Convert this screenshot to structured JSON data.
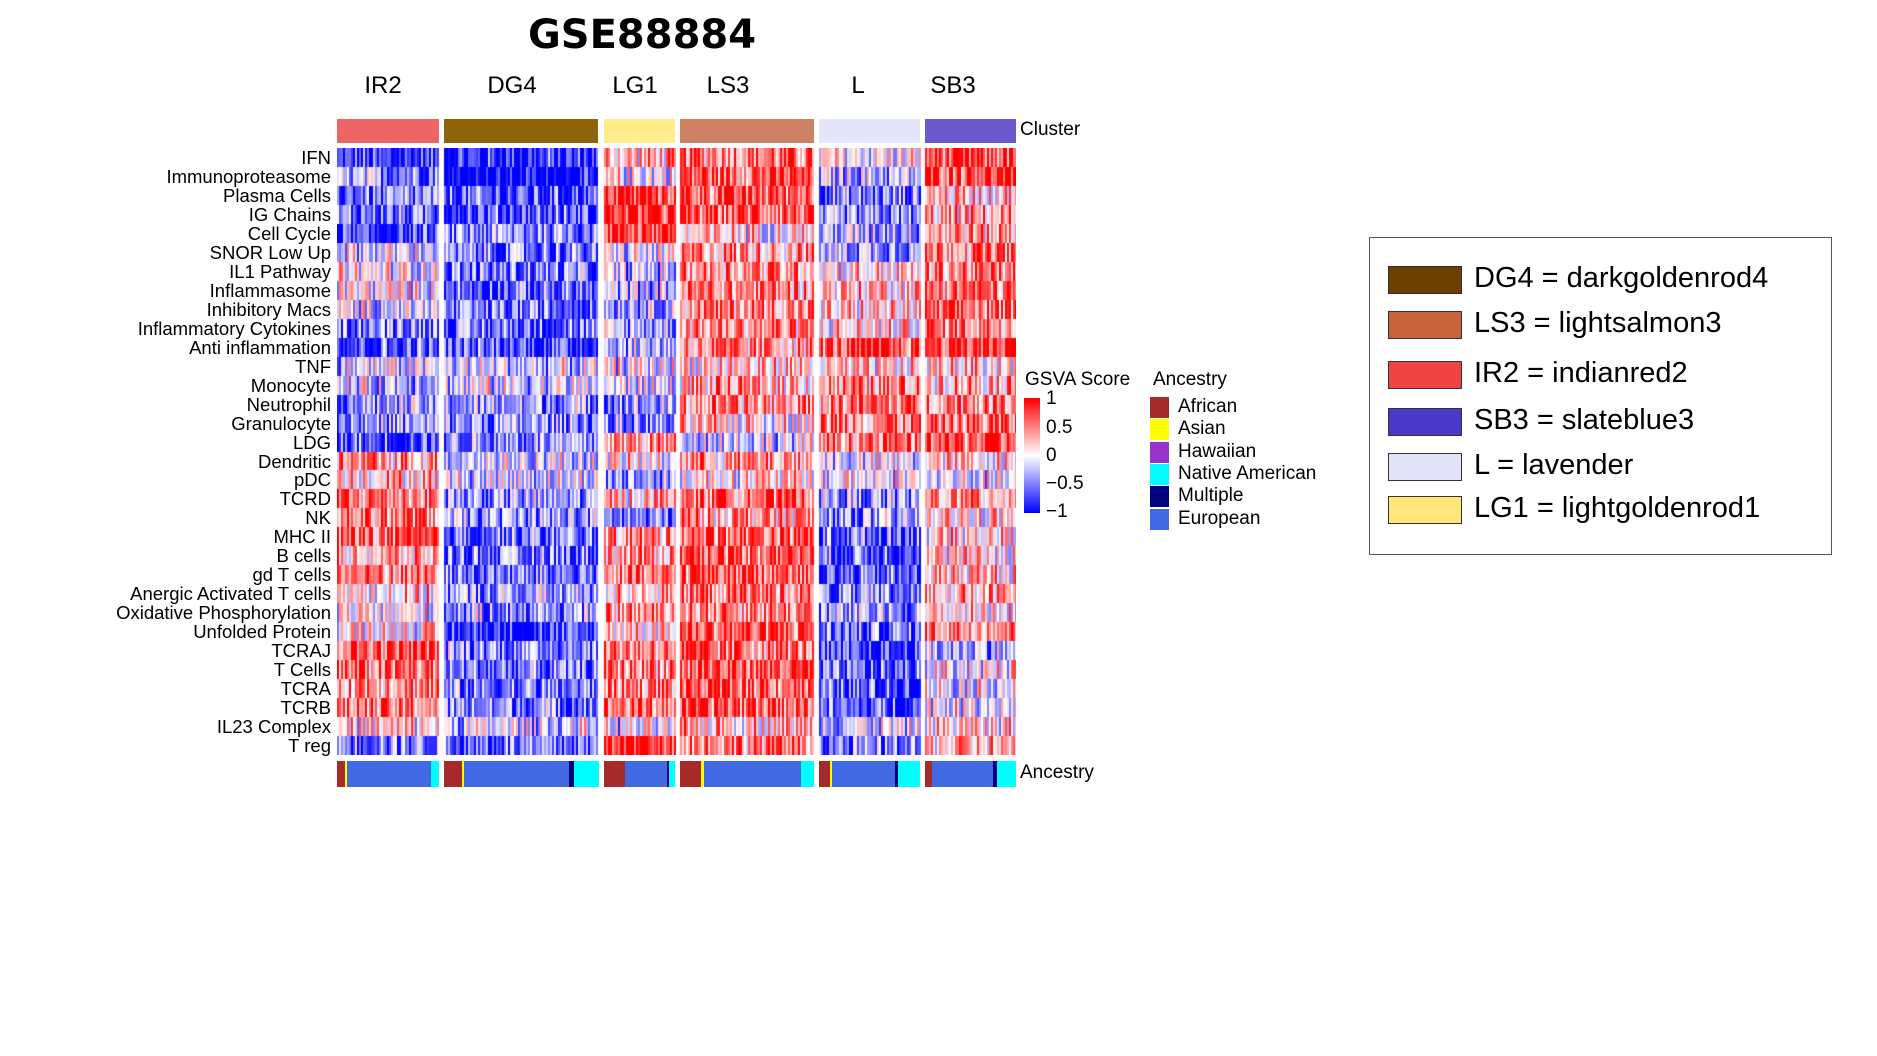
{
  "chart_data": {
    "type": "heatmap",
    "title": "GSVA Score",
    "plot_title": "GSE88884",
    "clusters": [
      {
        "label": "IR2",
        "color": "#EE6363"
      },
      {
        "label": "DG4",
        "color": "#8B6508"
      },
      {
        "label": "LG1",
        "color": "#FFEC8B"
      },
      {
        "label": "LS3",
        "color": "#CD8162"
      },
      {
        "label": "L",
        "color": "#E6E6FA"
      },
      {
        "label": "SB3",
        "color": "#6959CD"
      }
    ],
    "rows": [
      "IFN",
      "Immunoproteasome",
      "Plasma Cells",
      "IG Chains",
      "Cell Cycle",
      "SNOR Low Up",
      "IL1 Pathway",
      "Inflammasome",
      "Inhibitory Macs",
      "Inflammatory Cytokines",
      "Anti inflammation",
      "TNF",
      "Monocyte",
      "Neutrophil",
      "Granulocyte",
      "LDG",
      "Dendritic",
      "pDC",
      "TCRD",
      "NK",
      "MHC II",
      "B cells",
      "gd T cells",
      "Anergic Activated T cells",
      "Oxidative Phosphorylation",
      "Unfolded Protein",
      "TCRAJ",
      "T Cells",
      "TCRA",
      "TCRB",
      "IL23 Complex",
      "T reg"
    ],
    "approx_cluster_mean_scores": [
      [
        -0.6,
        -0.6,
        0.2,
        0.4,
        0,
        0.5
      ],
      [
        -0.3,
        -0.8,
        0,
        0.5,
        -0.2,
        0.6
      ],
      [
        -0.4,
        -0.5,
        0.6,
        0.5,
        -0.4,
        0.2
      ],
      [
        -0.4,
        -0.5,
        0.6,
        0.5,
        -0.4,
        0.2
      ],
      [
        -0.6,
        -0.3,
        0.6,
        0.1,
        -0.2,
        0.3
      ],
      [
        -0.1,
        -0.4,
        -0.1,
        0.3,
        -0.2,
        0.4
      ],
      [
        0,
        -0.4,
        -0.2,
        0.35,
        0.1,
        0.35
      ],
      [
        0,
        -0.45,
        -0.2,
        0.35,
        0.2,
        0.45
      ],
      [
        -0.1,
        -0.4,
        -0.2,
        0.35,
        0.1,
        0.4
      ],
      [
        -0.3,
        -0.4,
        -0.2,
        0.35,
        0.1,
        0.4
      ],
      [
        -0.5,
        -0.5,
        -0.2,
        0.3,
        0.5,
        0.6
      ],
      [
        -0.1,
        -0.15,
        -0.05,
        0.15,
        0.05,
        0.15
      ],
      [
        -0.15,
        -0.1,
        -0.1,
        0.25,
        0.3,
        0.3
      ],
      [
        -0.3,
        -0.3,
        -0.3,
        0.3,
        0.4,
        0.4
      ],
      [
        -0.3,
        -0.3,
        -0.4,
        0.1,
        0.4,
        0.4
      ],
      [
        -0.5,
        -0.3,
        0.3,
        -0.1,
        0.4,
        0.5
      ],
      [
        0.3,
        -0.1,
        0,
        0.3,
        -0.1,
        0.1
      ],
      [
        0.2,
        -0.1,
        -0.3,
        0.1,
        0,
        -0.1
      ],
      [
        0.4,
        -0.3,
        0.2,
        0.5,
        -0.3,
        0.3
      ],
      [
        0.4,
        -0.3,
        -0.4,
        0.3,
        -0.3,
        0.1
      ],
      [
        0.4,
        -0.4,
        0.3,
        0.5,
        -0.4,
        0.1
      ],
      [
        0.2,
        -0.4,
        0.3,
        0.55,
        -0.4,
        0.1
      ],
      [
        0.4,
        -0.4,
        0.3,
        0.55,
        -0.5,
        0.2
      ],
      [
        0.1,
        -0.3,
        0.2,
        0.4,
        -0.4,
        0.2
      ],
      [
        0,
        -0.3,
        0.3,
        0.4,
        -0.3,
        0.1
      ],
      [
        0.1,
        -0.6,
        0.2,
        0.5,
        -0.4,
        0.4
      ],
      [
        0.5,
        -0.3,
        0.4,
        0.4,
        -0.6,
        -0.2
      ],
      [
        0.4,
        -0.4,
        0.4,
        0.5,
        -0.5,
        0
      ],
      [
        0.4,
        -0.4,
        0.4,
        0.5,
        -0.5,
        0
      ],
      [
        0.35,
        -0.35,
        0.4,
        0.5,
        -0.5,
        0
      ],
      [
        0.1,
        -0.1,
        -0.1,
        0.2,
        -0.1,
        0.1
      ],
      [
        -0.3,
        -0.4,
        0.7,
        0.4,
        -0.4,
        0.2
      ]
    ],
    "color_scale": {
      "min": -1,
      "max": 1,
      "low": "#0000FF",
      "mid": "#FFFFFF",
      "high": "#FF0000",
      "ticks": [
        "1",
        "0.5",
        "0",
        "−0.5",
        "−1"
      ]
    },
    "ancestry_categories": [
      {
        "label": "African",
        "color": "#A52A2A"
      },
      {
        "label": "Asian",
        "color": "#FFFF00"
      },
      {
        "label": "Hawaiian",
        "color": "#9932CC"
      },
      {
        "label": "Native American",
        "color": "#00FFFF"
      },
      {
        "label": "Multiple",
        "color": "#000080"
      },
      {
        "label": "European",
        "color": "#4169E1"
      }
    ],
    "ancestry_fractions_by_cluster": [
      {
        "African": 0.08,
        "Asian": 0.01,
        "European": 0.83,
        "Native American": 0.08
      },
      {
        "African": 0.12,
        "Asian": 0.005,
        "European": 0.685,
        "Multiple": 0.03,
        "Native American": 0.16
      },
      {
        "African": 0.29,
        "European": 0.6,
        "Multiple": 0.03,
        "Native American": 0.08
      },
      {
        "African": 0.16,
        "Asian": 0.02,
        "European": 0.72,
        "Native American": 0.1
      },
      {
        "African": 0.11,
        "Asian": 0.01,
        "European": 0.63,
        "Multiple": 0.03,
        "Native American": 0.22
      },
      {
        "African": 0.08,
        "European": 0.67,
        "Multiple": 0.04,
        "Native American": 0.21
      }
    ],
    "legend_placement": "right"
  },
  "labels": {
    "cluster": "Cluster",
    "ancestry_bar": "Ancestry",
    "gsva_legend_title": "GSVA Score",
    "ancestry_legend_title": "Ancestry"
  },
  "cluster_key": [
    {
      "text": "DG4 = darkgoldenrod4",
      "color": "#6E4000"
    },
    {
      "text": "LS3 = lightsalmon3",
      "color": "#C8643C"
    },
    {
      "text": "IR2 = indianred2",
      "color": "#EE4444"
    },
    {
      "text": "SB3 = slateblue3",
      "color": "#4A38C8"
    },
    {
      "text": "L = lavender",
      "color": "#E2E2F8"
    },
    {
      "text": "LG1 = lightgoldenrod1",
      "color": "#FFE57A"
    }
  ]
}
